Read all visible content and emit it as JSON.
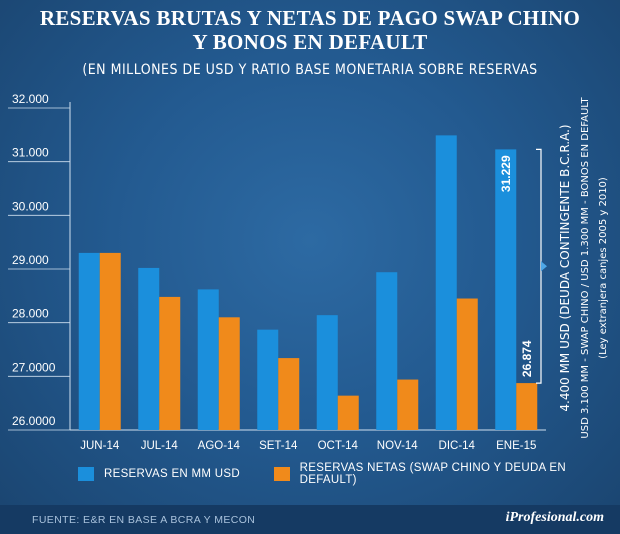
{
  "title_line1": "RESERVAS BRUTAS Y NETAS DE PAGO SWAP CHINO",
  "title_line2": "Y BONOS EN DEFAULT",
  "subtitle": "(EN MILLONES DE USD Y RATIO BASE MONETARIA SOBRE RESERVAS",
  "colors": {
    "gross": "#1b8fdc",
    "net": "#f08a1b",
    "axis_text": "#ffffff"
  },
  "chart_data": {
    "type": "bar",
    "title": "RESERVAS BRUTAS Y NETAS DE PAGO SWAP CHINO Y BONOS EN DEFAULT",
    "categories": [
      "JUN-14",
      "JUL-14",
      "AGO-14",
      "SET-14",
      "OCT-14",
      "NOV-14",
      "DIC-14",
      "ENE-15"
    ],
    "ylim": [
      26000,
      32000
    ],
    "y_ticks": [
      "32.000",
      "31.000",
      "30.000",
      "29.000",
      "28.000",
      "27.0000",
      "26.0000"
    ],
    "series": [
      {
        "name": "RESERVAS EN MM USD",
        "values": [
          29300,
          29020,
          28620,
          27870,
          28140,
          28940,
          31490,
          31229
        ]
      },
      {
        "name": "RESERVAS NETAS (SWAP CHINO Y DEUDA EN DEFAULT)",
        "values": [
          29300,
          28480,
          28100,
          27340,
          26640,
          26940,
          28450,
          26874
        ]
      }
    ],
    "data_labels": {
      "gross_last": "31.229",
      "net_last": "26.874"
    }
  },
  "annotation": {
    "line1": "4.400 MM USD (DEUDA CONTINGENTE B.C.R.A.)",
    "line2": "USD 3.100 MM - SWAP CHINO  /  USD 1.300 MM - BONOS EN DEFAULT",
    "line3": "(Ley extranjera canjes 2005 y 2010)"
  },
  "legend": {
    "gross": "RESERVAS EN MM USD",
    "net": "RESERVAS NETAS (SWAP CHINO Y DEUDA EN DEFAULT)"
  },
  "source": "FUENTE:  E&R EN BASE A BCRA Y MECON",
  "brand": "iProfesional.com"
}
